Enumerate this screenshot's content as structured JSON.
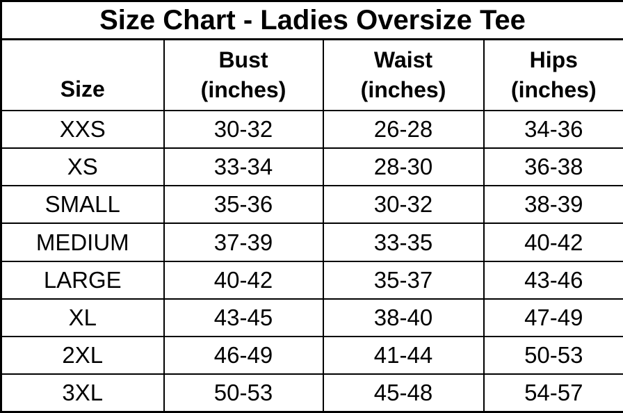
{
  "title": "Size Chart - Ladies Oversize Tee",
  "columns": [
    {
      "label": "Size",
      "unit": ""
    },
    {
      "label": "Bust",
      "unit": "(inches)"
    },
    {
      "label": "Waist",
      "unit": "(inches)"
    },
    {
      "label": "Hips",
      "unit": "(inches)"
    }
  ],
  "rows": [
    {
      "size": "XXS",
      "bust": "30-32",
      "waist": "26-28",
      "hips": "34-36"
    },
    {
      "size": "XS",
      "bust": "33-34",
      "waist": "28-30",
      "hips": "36-38"
    },
    {
      "size": "SMALL",
      "bust": "35-36",
      "waist": "30-32",
      "hips": "38-39"
    },
    {
      "size": "MEDIUM",
      "bust": "37-39",
      "waist": "33-35",
      "hips": "40-42"
    },
    {
      "size": "LARGE",
      "bust": "40-42",
      "waist": "35-37",
      "hips": "43-46"
    },
    {
      "size": "XL",
      "bust": "43-45",
      "waist": "38-40",
      "hips": "47-49"
    },
    {
      "size": "2XL",
      "bust": "46-49",
      "waist": "41-44",
      "hips": "50-53"
    },
    {
      "size": "3XL",
      "bust": "50-53",
      "waist": "45-48",
      "hips": "54-57"
    }
  ],
  "colors": {
    "text": "#000000",
    "background": "#ffffff",
    "border": "#000000"
  },
  "chart_data": {
    "type": "table",
    "title": "Size Chart - Ladies Oversize Tee",
    "columns": [
      "Size",
      "Bust (inches)",
      "Waist (inches)",
      "Hips (inches)"
    ],
    "rows": [
      [
        "XXS",
        "30-32",
        "26-28",
        "34-36"
      ],
      [
        "XS",
        "33-34",
        "28-30",
        "36-38"
      ],
      [
        "SMALL",
        "35-36",
        "30-32",
        "38-39"
      ],
      [
        "MEDIUM",
        "37-39",
        "33-35",
        "40-42"
      ],
      [
        "LARGE",
        "40-42",
        "35-37",
        "43-46"
      ],
      [
        "XL",
        "43-45",
        "38-40",
        "47-49"
      ],
      [
        "2XL",
        "46-49",
        "41-44",
        "50-53"
      ],
      [
        "3XL",
        "50-53",
        "45-48",
        "54-57"
      ]
    ]
  }
}
